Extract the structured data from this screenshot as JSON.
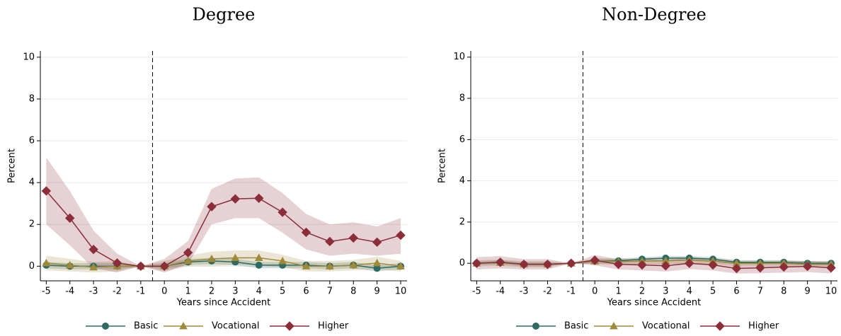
{
  "chart_data": [
    {
      "type": "line",
      "title": "Degree",
      "x_label": "Years since Accident",
      "y_label": "Percent",
      "x": [
        -5,
        -4,
        -3,
        -2,
        -1,
        0,
        1,
        2,
        3,
        4,
        5,
        6,
        7,
        8,
        9,
        10
      ],
      "xlim": [
        -5.25,
        10.27
      ],
      "xticks": [
        -5,
        -4,
        -3,
        -2,
        -1,
        0,
        1,
        2,
        3,
        4,
        5,
        6,
        7,
        8,
        9,
        10
      ],
      "ylim": [
        -0.7,
        10.3
      ],
      "yticks": [
        0,
        2,
        4,
        6,
        8,
        10
      ],
      "grid": true,
      "vline": -0.5,
      "series": [
        {
          "name": "Basic",
          "color": "#2e6b63",
          "marker": "circle",
          "values": [
            0.05,
            0,
            0,
            0,
            0,
            0,
            0.2,
            0.25,
            0.2,
            0.05,
            0.05,
            0.05,
            0,
            0.05,
            -0.1,
            0
          ],
          "lower": [
            -0.1,
            -0.15,
            -0.15,
            -0.15,
            0,
            -0.15,
            0.05,
            0.1,
            0.05,
            -0.1,
            -0.1,
            -0.1,
            -0.15,
            -0.1,
            -0.25,
            -0.15
          ],
          "upper": [
            0.2,
            0.15,
            0.15,
            0.15,
            0,
            0.15,
            0.35,
            0.4,
            0.35,
            0.2,
            0.2,
            0.2,
            0.15,
            0.2,
            0.05,
            0.15
          ]
        },
        {
          "name": "Vocational",
          "color": "#a08a3a",
          "marker": "triangle",
          "values": [
            0.15,
            0.05,
            -0.05,
            0,
            0,
            0,
            0.25,
            0.35,
            0.4,
            0.4,
            0.25,
            0,
            0,
            0.05,
            0.15,
            0
          ],
          "lower": [
            -0.2,
            -0.25,
            -0.3,
            -0.25,
            0,
            -0.25,
            0,
            0,
            0.05,
            0.05,
            -0.05,
            -0.25,
            -0.25,
            -0.2,
            -0.15,
            -0.25
          ],
          "upper": [
            0.5,
            0.35,
            0.2,
            0.25,
            0,
            0.25,
            0.5,
            0.7,
            0.75,
            0.75,
            0.55,
            0.25,
            0.25,
            0.3,
            0.45,
            0.25
          ]
        },
        {
          "name": "Higher",
          "color": "#8b2e3a",
          "marker": "diamond",
          "values": [
            3.6,
            2.3,
            0.8,
            0.15,
            0,
            0,
            0.65,
            2.85,
            3.22,
            3.25,
            2.58,
            1.62,
            1.18,
            1.35,
            1.15,
            1.48
          ],
          "lower": [
            2,
            1,
            -0.1,
            -0.3,
            0,
            -0.3,
            0.1,
            2,
            2.3,
            2.3,
            1.6,
            0.8,
            0.5,
            0.6,
            0.5,
            0.6
          ],
          "upper": [
            5.2,
            3.6,
            1.7,
            0.6,
            0,
            0.35,
            1.2,
            3.7,
            4.2,
            4.25,
            3.5,
            2.5,
            2,
            2.1,
            1.9,
            2.3
          ]
        }
      ]
    },
    {
      "type": "line",
      "title": "Non-Degree",
      "x_label": "Years since Accident",
      "y_label": "Percent",
      "x": [
        -5,
        -4,
        -3,
        -2,
        -1,
        0,
        1,
        2,
        3,
        4,
        5,
        6,
        7,
        8,
        9,
        10
      ],
      "xlim": [
        -5.25,
        10.27
      ],
      "xticks": [
        -5,
        -4,
        -3,
        -2,
        -1,
        0,
        1,
        2,
        3,
        4,
        5,
        6,
        7,
        8,
        9,
        10
      ],
      "ylim": [
        -0.85,
        10.3
      ],
      "yticks": [
        0,
        2,
        4,
        6,
        8,
        10
      ],
      "grid": true,
      "vline": -0.5,
      "series": [
        {
          "name": "Basic",
          "color": "#2e6b63",
          "marker": "circle",
          "values": [
            0,
            0.05,
            -0.05,
            -0.05,
            0,
            0.1,
            0.12,
            0.2,
            0.25,
            0.25,
            0.2,
            0.05,
            0.05,
            0.05,
            0,
            0
          ],
          "lower": [
            -0.1,
            -0.05,
            -0.15,
            -0.15,
            0,
            0,
            0.02,
            0.1,
            0.15,
            0.15,
            0.1,
            -0.05,
            -0.05,
            -0.05,
            -0.1,
            -0.1
          ],
          "upper": [
            0.1,
            0.15,
            0.05,
            0.05,
            0,
            0.2,
            0.22,
            0.3,
            0.35,
            0.35,
            0.3,
            0.15,
            0.15,
            0.15,
            0.1,
            0.1
          ]
        },
        {
          "name": "Vocational",
          "color": "#a08a3a",
          "marker": "triangle",
          "values": [
            0,
            0.03,
            -0.05,
            -0.05,
            0,
            0.1,
            0.08,
            0.1,
            0.12,
            0.15,
            0.1,
            0,
            0,
            0,
            -0.05,
            -0.05
          ],
          "lower": [
            -0.15,
            -0.12,
            -0.2,
            -0.2,
            0,
            -0.05,
            -0.07,
            -0.05,
            -0.03,
            0,
            -0.05,
            -0.15,
            -0.15,
            -0.15,
            -0.2,
            -0.2
          ],
          "upper": [
            0.15,
            0.18,
            0.1,
            0.1,
            0,
            0.25,
            0.23,
            0.25,
            0.27,
            0.3,
            0.25,
            0.15,
            0.15,
            0.15,
            0.1,
            0.1
          ]
        },
        {
          "name": "Higher",
          "color": "#8b2e3a",
          "marker": "diamond",
          "values": [
            0,
            0.05,
            -0.05,
            -0.05,
            0,
            0.15,
            -0.05,
            -0.08,
            -0.12,
            0,
            -0.08,
            -0.25,
            -0.22,
            -0.18,
            -0.15,
            -0.22
          ],
          "lower": [
            -0.3,
            -0.25,
            -0.3,
            -0.3,
            0,
            -0.1,
            -0.3,
            -0.35,
            -0.4,
            -0.28,
            -0.35,
            -0.5,
            -0.48,
            -0.45,
            -0.42,
            -0.5
          ],
          "upper": [
            0.3,
            0.35,
            0.2,
            0.2,
            0,
            0.4,
            0.2,
            0.2,
            0.16,
            0.28,
            0.2,
            0,
            0.04,
            0.09,
            0.12,
            0.06
          ]
        }
      ]
    }
  ]
}
